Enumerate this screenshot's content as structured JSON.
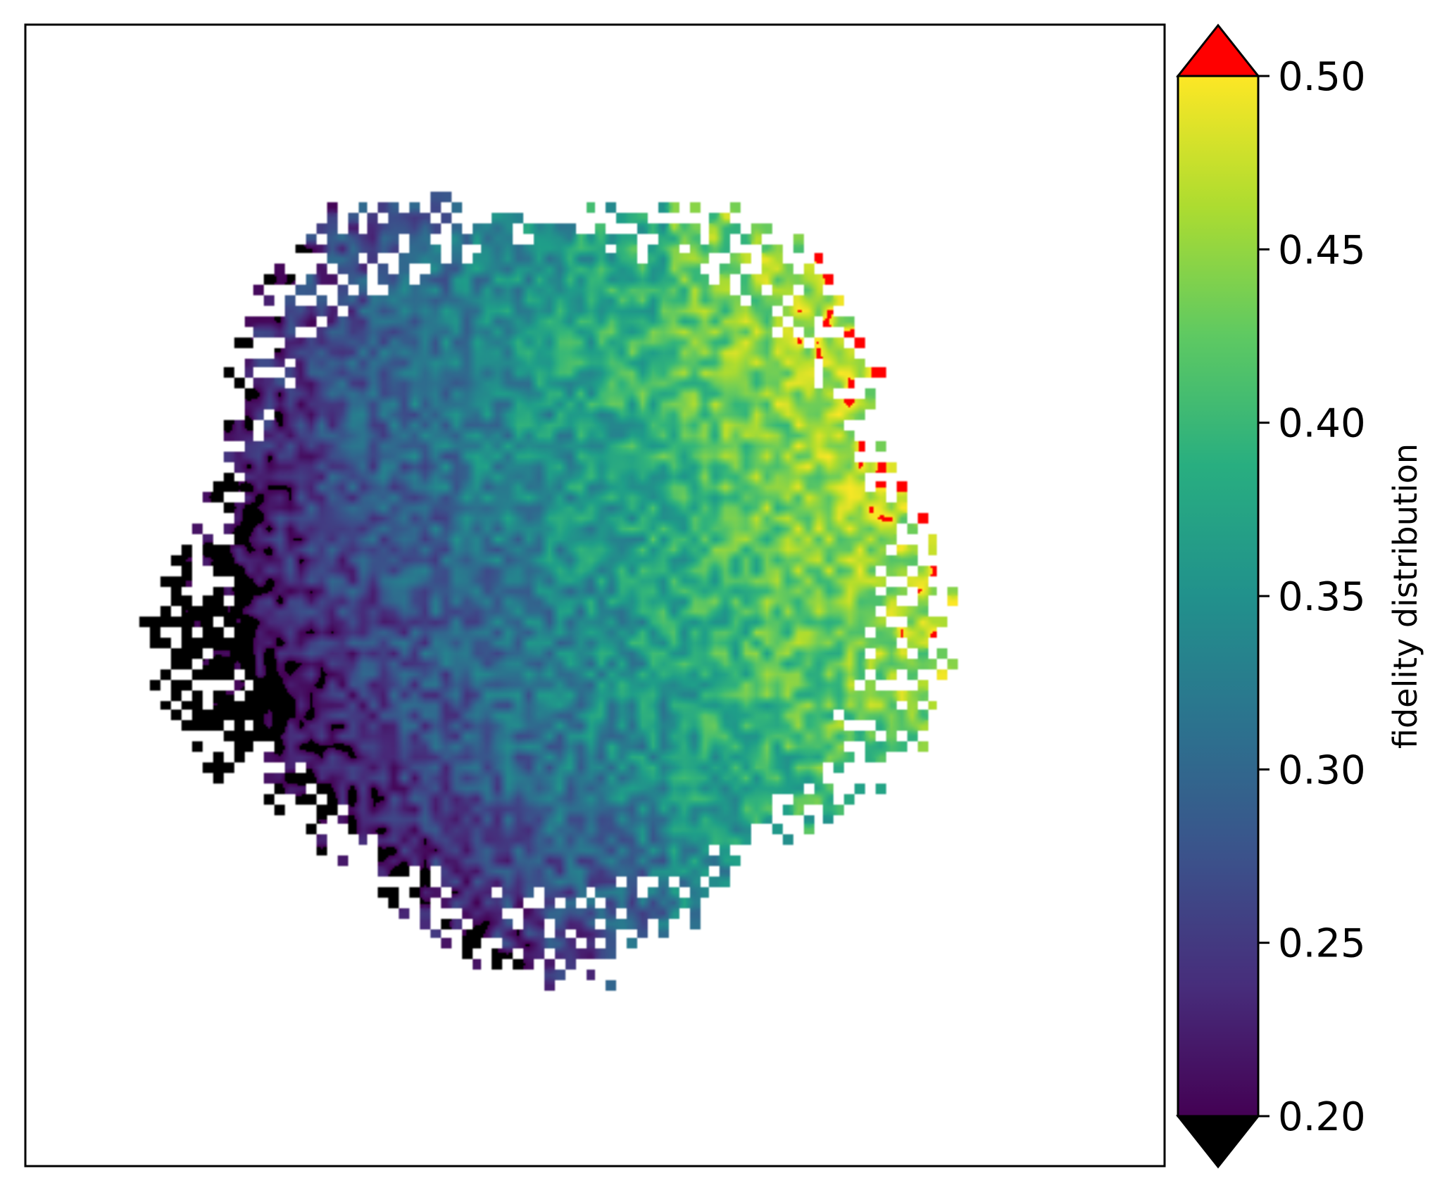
{
  "chart_data": {
    "type": "heatmap",
    "title": "",
    "xlabel": "",
    "ylabel": "",
    "colormap": "viridis",
    "value_range": [
      0.2,
      0.5
    ],
    "over_color": "#ff0000",
    "under_color": "#000000",
    "missing_color": "#ffffff",
    "grid": false,
    "axis_ticks_visible": false,
    "colorbar": {
      "label": "fidelity distribution",
      "position": "right",
      "extend": "both",
      "ticks": [
        0.2,
        0.25,
        0.3,
        0.35,
        0.4,
        0.45,
        0.5
      ],
      "tick_labels": [
        "0.20",
        "0.25",
        "0.30",
        "0.35",
        "0.40",
        "0.45",
        "0.50"
      ]
    },
    "grid_shape": [
      110,
      110
    ],
    "field": {
      "shape": "roughly circular blob",
      "center_frac": [
        0.46,
        0.47
      ],
      "radius_frac": 0.33,
      "gradient": "low (~0.20 and below) toward lower-left edge, high (~0.45-0.50+) toward right edge",
      "noise": "speckled pixel-level noise"
    }
  }
}
